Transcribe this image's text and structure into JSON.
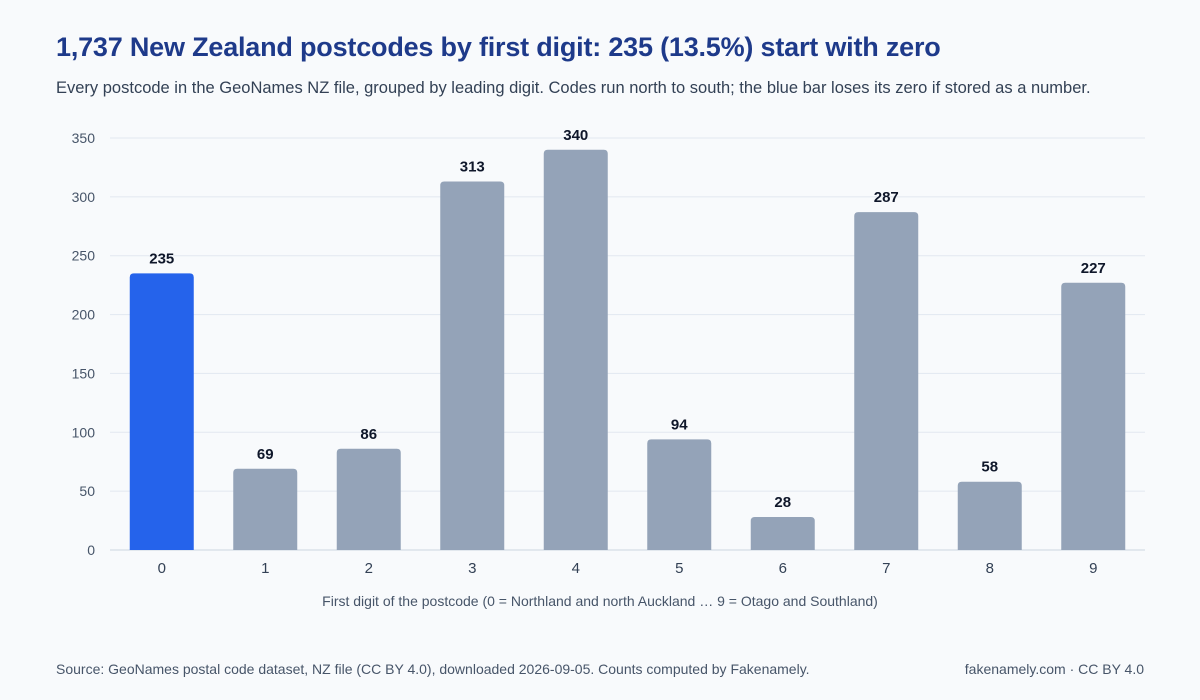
{
  "title": "1,737 New Zealand postcodes by first digit: 235 (13.5%) start with zero",
  "subtitle": "Every postcode in the GeoNames NZ file, grouped by leading digit. Codes run north to south; the blue bar loses its zero if stored as a number.",
  "footer": {
    "source": "Source: GeoNames postal code dataset, NZ file (CC BY 4.0), downloaded 2026-09-05. Counts computed by Fakenamely.",
    "credit": "fakenamely.com · CC BY 4.0"
  },
  "chart_data": {
    "type": "bar",
    "categories": [
      "0",
      "1",
      "2",
      "3",
      "4",
      "5",
      "6",
      "7",
      "8",
      "9"
    ],
    "values": [
      235,
      69,
      86,
      313,
      340,
      94,
      28,
      287,
      58,
      227
    ],
    "xlabel": "First digit of the postcode (0 = Northland and north Auckland … 9 = Otago and Southland)",
    "ylabel": "",
    "ylim": [
      0,
      350
    ],
    "yticks": [
      0,
      50,
      100,
      150,
      200,
      250,
      300,
      350
    ],
    "grid": true,
    "highlight_index": 0,
    "colors": {
      "highlight": "#2563eb",
      "default": "#94a3b8",
      "label": "#0f172a",
      "grid": "#e2e8f0",
      "axis_text": "#475569"
    }
  }
}
